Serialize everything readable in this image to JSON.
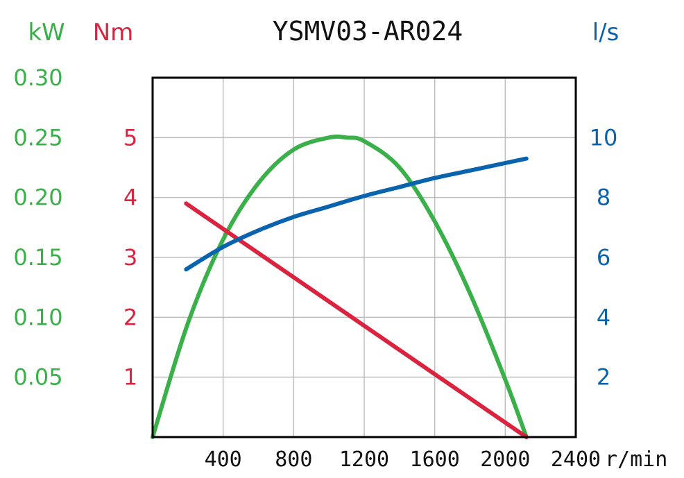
{
  "chart_data": {
    "type": "line",
    "title": "YSMV03-AR024",
    "x_axis": {
      "unit": "r/min",
      "range": [
        0,
        2400
      ],
      "ticks": [
        400,
        800,
        1200,
        1600,
        2000,
        2400
      ],
      "tick_labels": [
        "400",
        "800",
        "1200",
        "1600",
        "2000",
        "2400"
      ],
      "grid": true
    },
    "y_axes": {
      "power": {
        "unit": "kW",
        "color": "#3AAF4A",
        "range": [
          0,
          0.3
        ],
        "ticks": [
          0.05,
          0.1,
          0.15,
          0.2,
          0.25,
          0.3
        ],
        "tick_labels": [
          "0.05",
          "0.10",
          "0.15",
          "0.20",
          "0.25",
          "0.30"
        ]
      },
      "torque": {
        "unit": "Nm",
        "color": "#D9233F",
        "range": [
          0,
          6
        ],
        "ticks": [
          1,
          2,
          3,
          4,
          5
        ],
        "tick_labels": [
          "1",
          "2",
          "3",
          "4",
          "5"
        ]
      },
      "flow": {
        "unit": "l/s",
        "color": "#0A63AD",
        "range": [
          0,
          12
        ],
        "ticks": [
          2,
          4,
          6,
          8,
          10
        ],
        "tick_labels": [
          "2",
          "4",
          "6",
          "8",
          "10"
        ]
      }
    },
    "series": [
      {
        "axis": "power",
        "color": "#3AAF4A",
        "x": [
          0,
          200,
          400,
          600,
          800,
          1000,
          1100,
          1200,
          1400,
          1600,
          1800,
          2000,
          2120
        ],
        "y": [
          0,
          0.095,
          0.165,
          0.212,
          0.24,
          0.25,
          0.25,
          0.247,
          0.225,
          0.18,
          0.12,
          0.048,
          0
        ]
      },
      {
        "axis": "torque",
        "color": "#D9233F",
        "x": [
          190,
          2120
        ],
        "y": [
          3.9,
          0
        ]
      },
      {
        "axis": "flow",
        "color": "#0A63AD",
        "x": [
          190,
          400,
          600,
          800,
          1000,
          1200,
          1400,
          1600,
          1800,
          2000,
          2120
        ],
        "y": [
          5.6,
          6.35,
          6.9,
          7.35,
          7.7,
          8.05,
          8.35,
          8.65,
          8.9,
          9.15,
          9.3
        ]
      }
    ]
  }
}
